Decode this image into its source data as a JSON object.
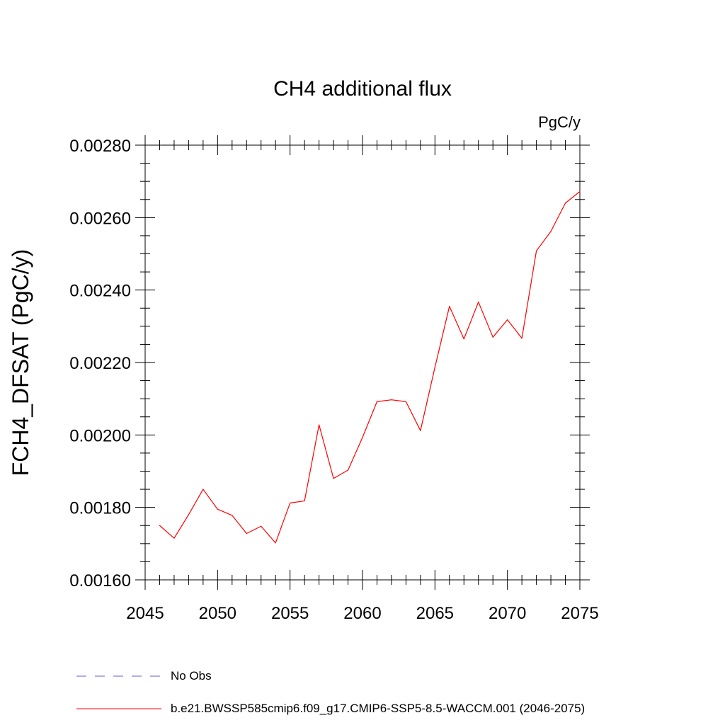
{
  "chart_data": {
    "type": "line",
    "title": "CH4 additional flux",
    "units_label": "PgC/y",
    "xlabel": "",
    "ylabel": "FCH4_DFSAT  (PgC/y)",
    "xlim": [
      2045,
      2075
    ],
    "ylim": [
      0.0016,
      0.0028
    ],
    "x_ticks": [
      2045,
      2050,
      2055,
      2060,
      2065,
      2070,
      2075
    ],
    "x_tick_labels": [
      "2045",
      "2050",
      "2055",
      "2060",
      "2065",
      "2070",
      "2075"
    ],
    "y_ticks": [
      0.0016,
      0.0018,
      0.002,
      0.0022,
      0.0024,
      0.0026,
      0.0028
    ],
    "y_tick_labels": [
      "0.00160",
      "0.00180",
      "0.00200",
      "0.00220",
      "0.00240",
      "0.00260",
      "0.00280"
    ],
    "grid": false,
    "legend_position": "bottom",
    "series": [
      {
        "name": "b.e21.BWSSP585cmip6.f09_g17.CMIP6-SSP5-8.5-WACCM.001 (2046-2075)",
        "color": "#ff0000",
        "dash": "solid",
        "x": [
          2046,
          2047,
          2048,
          2049,
          2050,
          2051,
          2052,
          2053,
          2054,
          2055,
          2056,
          2057,
          2058,
          2059,
          2060,
          2061,
          2062,
          2063,
          2064,
          2065,
          2066,
          2067,
          2068,
          2069,
          2070,
          2071,
          2072,
          2073,
          2074,
          2075
        ],
        "y": [
          0.00175,
          0.001715,
          0.00178,
          0.00185,
          0.001795,
          0.001778,
          0.001728,
          0.001748,
          0.001702,
          0.001812,
          0.001818,
          0.002028,
          0.00188,
          0.001903,
          0.001993,
          0.002092,
          0.002097,
          0.002092,
          0.002012,
          0.002187,
          0.002355,
          0.002265,
          0.002367,
          0.00227,
          0.002318,
          0.002267,
          0.002508,
          0.002562,
          0.00264,
          0.002672
        ]
      }
    ],
    "legend": [
      {
        "label": "No Obs",
        "color": "#6a5acd",
        "dash": "dashed"
      },
      {
        "label": "b.e21.BWSSP585cmip6.f09_g17.CMIP6-SSP5-8.5-WACCM.001 (2046-2075)",
        "color": "#ff0000",
        "dash": "solid"
      }
    ]
  }
}
